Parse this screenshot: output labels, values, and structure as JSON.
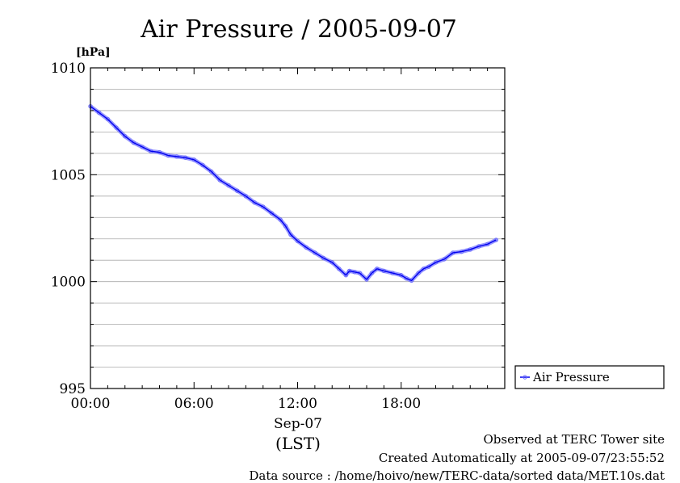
{
  "chart_data": {
    "type": "line",
    "title": "Air Pressure / 2005-09-07",
    "ylabel": "[hPa]",
    "xlabel_date": "Sep-07",
    "xlabel_tz": "(LST)",
    "xlim": [
      0,
      24
    ],
    "ylim": [
      995,
      1010
    ],
    "x_ticks": [
      {
        "value": 0,
        "label": "00:00"
      },
      {
        "value": 6,
        "label": "06:00"
      },
      {
        "value": 12,
        "label": "12:00"
      },
      {
        "value": 18,
        "label": "18:00"
      }
    ],
    "y_ticks": [
      {
        "value": 995,
        "label": "995"
      },
      {
        "value": 1000,
        "label": "1000"
      },
      {
        "value": 1005,
        "label": "1005"
      },
      {
        "value": 1010,
        "label": "1010"
      }
    ],
    "y_gridlines": [
      996,
      997,
      998,
      999,
      1000,
      1001,
      1002,
      1003,
      1004,
      1005,
      1006,
      1007,
      1008,
      1009
    ],
    "grid": true,
    "legend_position": "right-bottom",
    "series": [
      {
        "name": "Air Pressure",
        "color": "#0000ee",
        "marker_color": "#6f6fff",
        "x": [
          0,
          0.5,
          1,
          1.5,
          2,
          2.5,
          3,
          3.5,
          4,
          4.5,
          5,
          5.5,
          6,
          6.5,
          7,
          7.5,
          8,
          8.5,
          9,
          9.5,
          10,
          10.5,
          11,
          11.3,
          11.6,
          12,
          12.5,
          13,
          13.5,
          14,
          14.4,
          14.8,
          15,
          15.3,
          15.6,
          16,
          16.3,
          16.6,
          17,
          17.5,
          18,
          18.3,
          18.6,
          19,
          19.3,
          19.6,
          20,
          20.5,
          21,
          21.5,
          22,
          22.5,
          23,
          23.5
        ],
        "values": [
          1008.2,
          1007.9,
          1007.6,
          1007.2,
          1006.8,
          1006.5,
          1006.3,
          1006.1,
          1006.05,
          1005.9,
          1005.85,
          1005.8,
          1005.7,
          1005.45,
          1005.15,
          1004.75,
          1004.5,
          1004.25,
          1004.0,
          1003.7,
          1003.5,
          1003.2,
          1002.9,
          1002.6,
          1002.2,
          1001.9,
          1001.6,
          1001.35,
          1001.1,
          1000.9,
          1000.6,
          1000.3,
          1000.5,
          1000.45,
          1000.4,
          1000.1,
          1000.4,
          1000.6,
          1000.5,
          1000.4,
          1000.3,
          1000.15,
          1000.05,
          1000.4,
          1000.6,
          1000.7,
          1000.9,
          1001.05,
          1001.35,
          1001.4,
          1001.5,
          1001.65,
          1001.75,
          1001.95
        ]
      }
    ]
  },
  "footer": {
    "line1": "Observed at TERC Tower site",
    "line2": "Created Automatically at 2005-09-07/23:55:52",
    "line3": "Data source : /home/hoivo/new/TERC-data/sorted  data/MET.10s.dat"
  }
}
